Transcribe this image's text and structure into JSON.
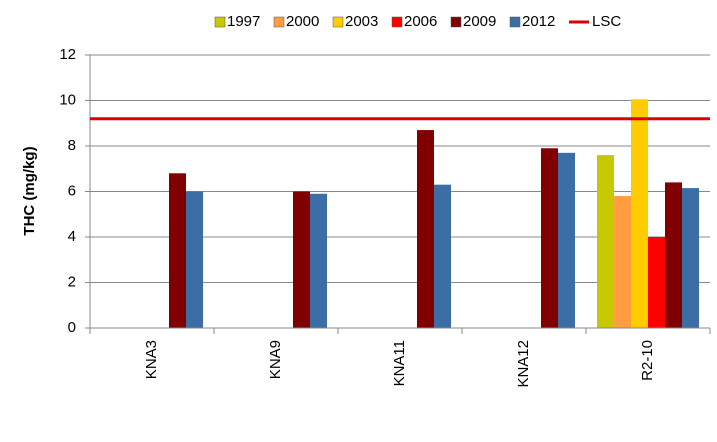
{
  "chart_data": {
    "type": "bar",
    "ylabel": "THC (mg/kg)",
    "categories": [
      "KNA3",
      "KNA9",
      "KNA11",
      "KNA12",
      "R2-10"
    ],
    "series": [
      {
        "name": "1997",
        "color": "#c8c800",
        "values": [
          null,
          null,
          null,
          null,
          7.6
        ]
      },
      {
        "name": "2000",
        "color": "#ff9e40",
        "values": [
          null,
          null,
          null,
          null,
          5.8
        ]
      },
      {
        "name": "2003",
        "color": "#ffcc00",
        "values": [
          null,
          null,
          null,
          null,
          10.05
        ]
      },
      {
        "name": "2006",
        "color": "#ff0000",
        "values": [
          null,
          null,
          null,
          null,
          4.0
        ]
      },
      {
        "name": "2009",
        "color": "#800000",
        "values": [
          6.8,
          6.0,
          8.7,
          7.9,
          6.4
        ]
      },
      {
        "name": "2012",
        "color": "#3a6ea5",
        "values": [
          6.0,
          5.9,
          6.3,
          7.7,
          6.15
        ]
      }
    ],
    "reference_line": {
      "name": "LSC",
      "value": 9.2,
      "color": "#dd0000"
    },
    "ylim": [
      0,
      12
    ],
    "yticks": [
      0,
      2,
      4,
      6,
      8,
      10,
      12
    ],
    "grid": true
  }
}
